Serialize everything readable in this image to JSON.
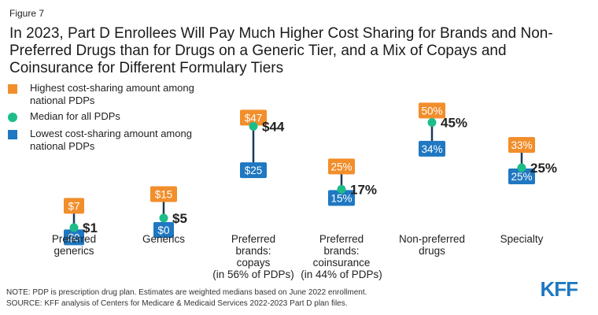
{
  "figure_label": "Figure 7",
  "title": "In 2023, Part D Enrollees Will Pay Much Higher Cost Sharing for Brands and Non-Preferred Drugs than for Drugs on a Generic Tier, and a Mix of Copays and Coinsurance for Different Formulary Tiers",
  "legend": {
    "highest": "Highest cost-sharing amount among national PDPs",
    "median": "Median for all PDPs",
    "lowest": "Lowest cost-sharing amount among national PDPs"
  },
  "notes": {
    "note": "NOTE: PDP is prescription drug plan. Estimates are weighted medians based on June 2022 enrollment.",
    "source": "SOURCE: KFF analysis of Centers for Medicare & Medicaid Services 2022-2023 Part D plan files."
  },
  "logo": "KFF",
  "colors": {
    "highest": "#f28e2b",
    "median": "#1dbd8a",
    "lowest": "#1f78c1",
    "line": "#1b3a5c"
  },
  "chart_data": {
    "type": "dot-range",
    "title": "In 2023, Part D Enrollees Will Pay Much Higher Cost Sharing for Brands and Non-Preferred Drugs than for Drugs on a Generic Tier, and a Mix of Copays and Coinsurance for Different Formulary Tiers",
    "series": [
      "Highest cost-sharing amount among national PDPs",
      "Median for all PDPs",
      "Lowest cost-sharing amount among national PDPs"
    ],
    "categories": [
      {
        "label": [
          "Preferred",
          "generics"
        ],
        "unit": "copay",
        "high": 7,
        "median": 1,
        "low": 0,
        "high_label": "$7",
        "median_label": "$1",
        "low_label": "$0"
      },
      {
        "label": [
          "Generics"
        ],
        "unit": "copay",
        "high": 15,
        "median": 5,
        "low": 0,
        "high_label": "$15",
        "median_label": "$5",
        "low_label": "$0"
      },
      {
        "label": [
          "Preferred",
          "brands:",
          "copays",
          "(in 56% of PDPs)"
        ],
        "unit": "copay",
        "high": 47,
        "median": 44,
        "low": 25,
        "high_label": "$47",
        "median_label": "$44",
        "low_label": "$25"
      },
      {
        "label": [
          "Preferred",
          "brands:",
          "coinsurance",
          "(in 44% of PDPs)"
        ],
        "unit": "coinsurance",
        "high": 25,
        "median": 17,
        "low": 15,
        "high_label": "25%",
        "median_label": "17%",
        "low_label": "15%"
      },
      {
        "label": [
          "Non-preferred",
          "drugs"
        ],
        "unit": "coinsurance",
        "high": 50,
        "median": 45,
        "low": 34,
        "high_label": "50%",
        "median_label": "45%",
        "low_label": "34%"
      },
      {
        "label": [
          "Specialty"
        ],
        "unit": "coinsurance",
        "high": 33,
        "median": 25,
        "low": 25,
        "high_label": "33%",
        "median_label": "25%",
        "low_label": "25%"
      }
    ],
    "ylim": [
      0,
      60
    ]
  }
}
